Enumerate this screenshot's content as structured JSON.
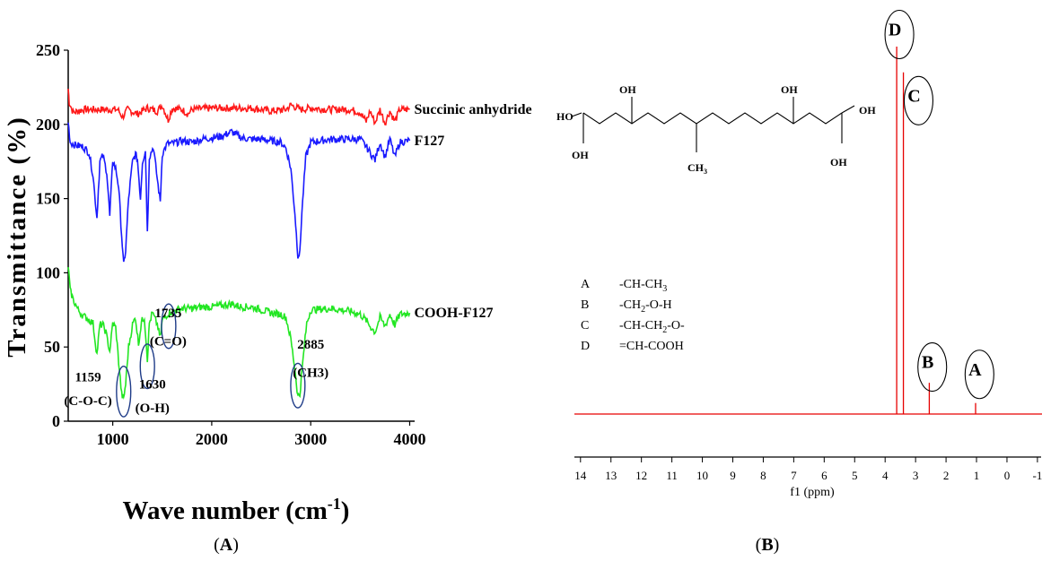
{
  "colors": {
    "red": "#ff1a1a",
    "blue": "#1a1aff",
    "green": "#22e622",
    "nmr": "#e60000",
    "circle": "#1f3c88",
    "black": "#000000"
  },
  "panel_labels": {
    "a": "(A)",
    "b": "(B)",
    "a_letter": "A",
    "b_letter": "B"
  },
  "chart_data": [
    {
      "type": "line",
      "panel": "A",
      "xlabel_main": "Wave number (cm",
      "xlabel_sup": "-1",
      "xlabel_close": ")",
      "ylabel": "Transmittance (%)",
      "xlim": [
        550,
        4050
      ],
      "ylim": [
        0,
        250
      ],
      "xticks": [
        1000,
        2000,
        3000,
        4000
      ],
      "yticks": [
        0,
        50,
        100,
        150,
        200,
        250
      ],
      "grid": false,
      "series": [
        {
          "name": "Succinic anhydride",
          "color": "red",
          "noise": 2.5,
          "points": [
            [
              550,
              224
            ],
            [
              560,
              215
            ],
            [
              600,
              208
            ],
            [
              700,
              210
            ],
            [
              900,
              210
            ],
            [
              1050,
              210
            ],
            [
              1100,
              205
            ],
            [
              1150,
              210
            ],
            [
              1250,
              207
            ],
            [
              1350,
              211
            ],
            [
              1450,
              209
            ],
            [
              1500,
              213
            ],
            [
              1560,
              203
            ],
            [
              1600,
              211
            ],
            [
              1700,
              210
            ],
            [
              1760,
              207
            ],
            [
              1800,
              210
            ],
            [
              2000,
              211
            ],
            [
              2200,
              211
            ],
            [
              2400,
              211
            ],
            [
              2600,
              209
            ],
            [
              2750,
              210
            ],
            [
              2800,
              213
            ],
            [
              2900,
              210
            ],
            [
              3000,
              211
            ],
            [
              3200,
              210
            ],
            [
              3400,
              210
            ],
            [
              3500,
              208
            ],
            [
              3560,
              202
            ],
            [
              3600,
              209
            ],
            [
              3650,
              201
            ],
            [
              3700,
              210
            ],
            [
              3750,
              201
            ],
            [
              3800,
              209
            ],
            [
              3850,
              202
            ],
            [
              3900,
              210
            ],
            [
              4000,
              210
            ]
          ]
        },
        {
          "name": "F127",
          "color": "blue",
          "noise": 2.5,
          "points": [
            [
              550,
              202
            ],
            [
              570,
              188
            ],
            [
              620,
              186
            ],
            [
              700,
              185
            ],
            [
              760,
              181
            ],
            [
              800,
              166
            ],
            [
              840,
              137
            ],
            [
              870,
              175
            ],
            [
              900,
              179
            ],
            [
              940,
              168
            ],
            [
              970,
              138
            ],
            [
              1000,
              176
            ],
            [
              1030,
              170
            ],
            [
              1060,
              158
            ],
            [
              1090,
              125
            ],
            [
              1110,
              105
            ],
            [
              1130,
              115
            ],
            [
              1160,
              150
            ],
            [
              1200,
              175
            ],
            [
              1230,
              180
            ],
            [
              1250,
              176
            ],
            [
              1280,
              150
            ],
            [
              1300,
              175
            ],
            [
              1330,
              182
            ],
            [
              1350,
              127
            ],
            [
              1370,
              178
            ],
            [
              1410,
              185
            ],
            [
              1450,
              163
            ],
            [
              1480,
              148
            ],
            [
              1500,
              180
            ],
            [
              1550,
              187
            ],
            [
              1600,
              187
            ],
            [
              1700,
              189
            ],
            [
              1800,
              188
            ],
            [
              1900,
              190
            ],
            [
              2000,
              191
            ],
            [
              2100,
              192
            ],
            [
              2200,
              195
            ],
            [
              2300,
              191
            ],
            [
              2400,
              190
            ],
            [
              2500,
              190
            ],
            [
              2600,
              189
            ],
            [
              2700,
              188
            ],
            [
              2750,
              184
            ],
            [
              2800,
              170
            ],
            [
              2840,
              140
            ],
            [
              2870,
              112
            ],
            [
              2890,
              113
            ],
            [
              2910,
              140
            ],
            [
              2950,
              178
            ],
            [
              3000,
              188
            ],
            [
              3200,
              190
            ],
            [
              3400,
              190
            ],
            [
              3500,
              190
            ],
            [
              3550,
              186
            ],
            [
              3600,
              181
            ],
            [
              3650,
              176
            ],
            [
              3700,
              188
            ],
            [
              3750,
              178
            ],
            [
              3800,
              190
            ],
            [
              3850,
              178
            ],
            [
              3900,
              188
            ],
            [
              4000,
              189
            ]
          ]
        },
        {
          "name": "COOH-F127",
          "color": "green",
          "noise": 2.5,
          "points": [
            [
              550,
              105
            ],
            [
              570,
              88
            ],
            [
              600,
              82
            ],
            [
              650,
              75
            ],
            [
              700,
              71
            ],
            [
              750,
              69
            ],
            [
              800,
              66
            ],
            [
              840,
              45
            ],
            [
              870,
              65
            ],
            [
              900,
              65
            ],
            [
              930,
              60
            ],
            [
              970,
              47
            ],
            [
              1000,
              66
            ],
            [
              1030,
              63
            ],
            [
              1060,
              40
            ],
            [
              1090,
              18
            ],
            [
              1110,
              15
            ],
            [
              1130,
              25
            ],
            [
              1160,
              50
            ],
            [
              1200,
              65
            ],
            [
              1230,
              70
            ],
            [
              1260,
              52
            ],
            [
              1290,
              67
            ],
            [
              1320,
              70
            ],
            [
              1350,
              42
            ],
            [
              1370,
              66
            ],
            [
              1400,
              73
            ],
            [
              1450,
              65
            ],
            [
              1480,
              56
            ],
            [
              1500,
              68
            ],
            [
              1550,
              72
            ],
            [
              1600,
              74
            ],
            [
              1700,
              76
            ],
            [
              1800,
              76
            ],
            [
              1900,
              77
            ],
            [
              2000,
              77
            ],
            [
              2100,
              78
            ],
            [
              2200,
              79
            ],
            [
              2300,
              77
            ],
            [
              2400,
              77
            ],
            [
              2500,
              75
            ],
            [
              2600,
              73
            ],
            [
              2700,
              72
            ],
            [
              2750,
              70
            ],
            [
              2800,
              55
            ],
            [
              2840,
              35
            ],
            [
              2870,
              17
            ],
            [
              2890,
              18
            ],
            [
              2920,
              40
            ],
            [
              2960,
              66
            ],
            [
              3000,
              75
            ],
            [
              3200,
              76
            ],
            [
              3400,
              74
            ],
            [
              3500,
              72
            ],
            [
              3560,
              68
            ],
            [
              3600,
              64
            ],
            [
              3650,
              60
            ],
            [
              3700,
              70
            ],
            [
              3750,
              64
            ],
            [
              3800,
              72
            ],
            [
              3850,
              65
            ],
            [
              3900,
              72
            ],
            [
              4000,
              73
            ]
          ]
        }
      ],
      "series_labels": [
        "Succinic anhydride",
        "F127",
        "COOH-F127"
      ],
      "annotations": [
        {
          "circle_x": 1110,
          "circle_y": 20,
          "rx": 72,
          "ry": 17,
          "label": "1159",
          "sub": "(C-O-C)",
          "lx": 750,
          "ly1": 27,
          "ly2": 11
        },
        {
          "circle_x": 1350,
          "circle_y": 37,
          "rx": 72,
          "ry": 15,
          "label": "1630",
          "sub": "(O-H)",
          "lx": 1400,
          "ly1": 22,
          "ly2": 6
        },
        {
          "circle_x": 1565,
          "circle_y": 64,
          "rx": 72,
          "ry": 15,
          "label": "1735",
          "sub": "(C=O)",
          "lx": 1560,
          "ly1": 70,
          "ly2": 51
        },
        {
          "circle_x": 2870,
          "circle_y": 24,
          "rx": 72,
          "ry": 15,
          "label": "2885",
          "sub": "(CH3)",
          "lx": 3000,
          "ly1": 49,
          "ly2": 30
        }
      ]
    },
    {
      "type": "line",
      "panel": "B",
      "xlabel": "f1 (ppm)",
      "xlim": [
        14.2,
        -1.15
      ],
      "xticks": [
        14,
        13,
        12,
        11,
        10,
        9,
        8,
        7,
        6,
        5,
        4,
        3,
        2,
        1,
        0,
        -1
      ],
      "xtick_labels": [
        "14",
        "13",
        "12",
        "11",
        "10",
        "9",
        "8",
        "7",
        "6",
        "5",
        "4",
        "3",
        "2",
        "1",
        "0",
        "-1"
      ],
      "baseline": 0,
      "ylim": [
        -0.01,
        1.0
      ],
      "peaks": [
        {
          "ppm": 3.62,
          "height": 1.0
        },
        {
          "ppm": 3.4,
          "height": 0.93
        },
        {
          "ppm": 2.55,
          "height": 0.085
        },
        {
          "ppm": 1.03,
          "height": 0.03
        }
      ],
      "peak_labels": [
        {
          "letter": "D",
          "ppm": 3.68,
          "y": 1.05
        },
        {
          "letter": "C",
          "ppm": 3.05,
          "y": 0.87
        },
        {
          "letter": "B",
          "ppm": 2.6,
          "y": 0.145
        },
        {
          "letter": "A",
          "ppm": 1.05,
          "y": 0.125
        }
      ],
      "legend": [
        {
          "key": "A",
          "value": "-CH-CH",
          "sub": "3",
          "tail": ""
        },
        {
          "key": "B",
          "value": "-CH",
          "sub": "2",
          "tail": "-O-H"
        },
        {
          "key": "C",
          "value": "-CH-CH",
          "sub": "2",
          "tail": "-O-"
        },
        {
          "key": "D",
          "value": "=CH-COOH",
          "sub": "",
          "tail": ""
        }
      ],
      "structure_labels": {
        "oh1": "OH",
        "oh2": "OH",
        "ho": "HO",
        "oh3": "OH",
        "oh4": "OH",
        "oh5": "OH",
        "ch3": "CH",
        "ch3_sub": "3"
      }
    }
  ]
}
